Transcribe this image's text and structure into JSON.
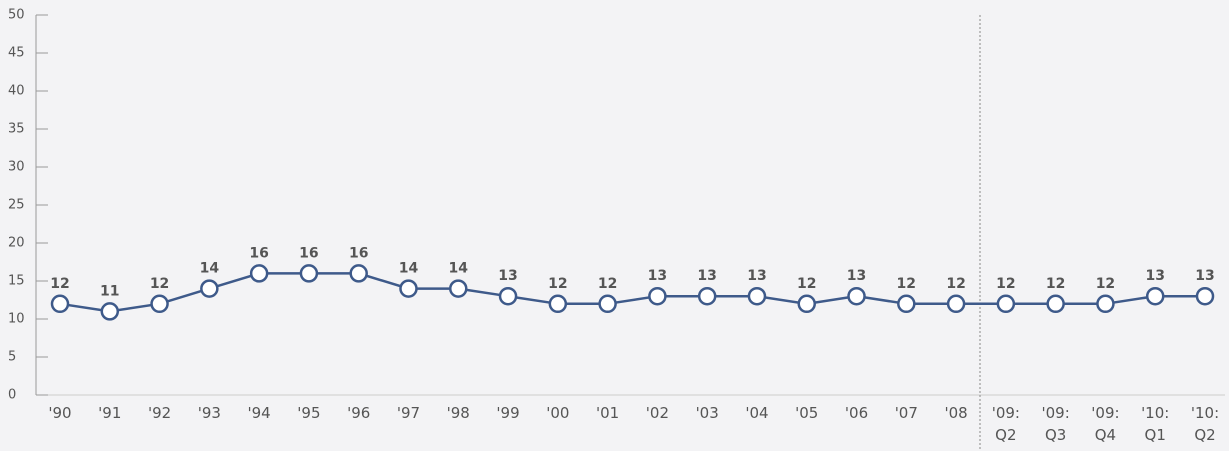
{
  "chart_data": {
    "type": "line",
    "categories": [
      "'90",
      "'91",
      "'92",
      "'93",
      "'94",
      "'95",
      "'96",
      "'97",
      "'98",
      "'99",
      "'00",
      "'01",
      "'02",
      "'03",
      "'04",
      "'05",
      "'06",
      "'07",
      "'08",
      "'09: Q2",
      "'09: Q3",
      "'09: Q4",
      "'10: Q1",
      "'10: Q2"
    ],
    "values": [
      12,
      11,
      12,
      14,
      16,
      16,
      16,
      14,
      14,
      13,
      12,
      12,
      13,
      13,
      13,
      12,
      13,
      12,
      12,
      12,
      12,
      12,
      13,
      13
    ],
    "color": "#3e5a8a",
    "ylim": [
      0,
      50
    ],
    "yticks": [
      0,
      5,
      10,
      15,
      20,
      25,
      30,
      35,
      40,
      45,
      50
    ],
    "grid": false
  }
}
